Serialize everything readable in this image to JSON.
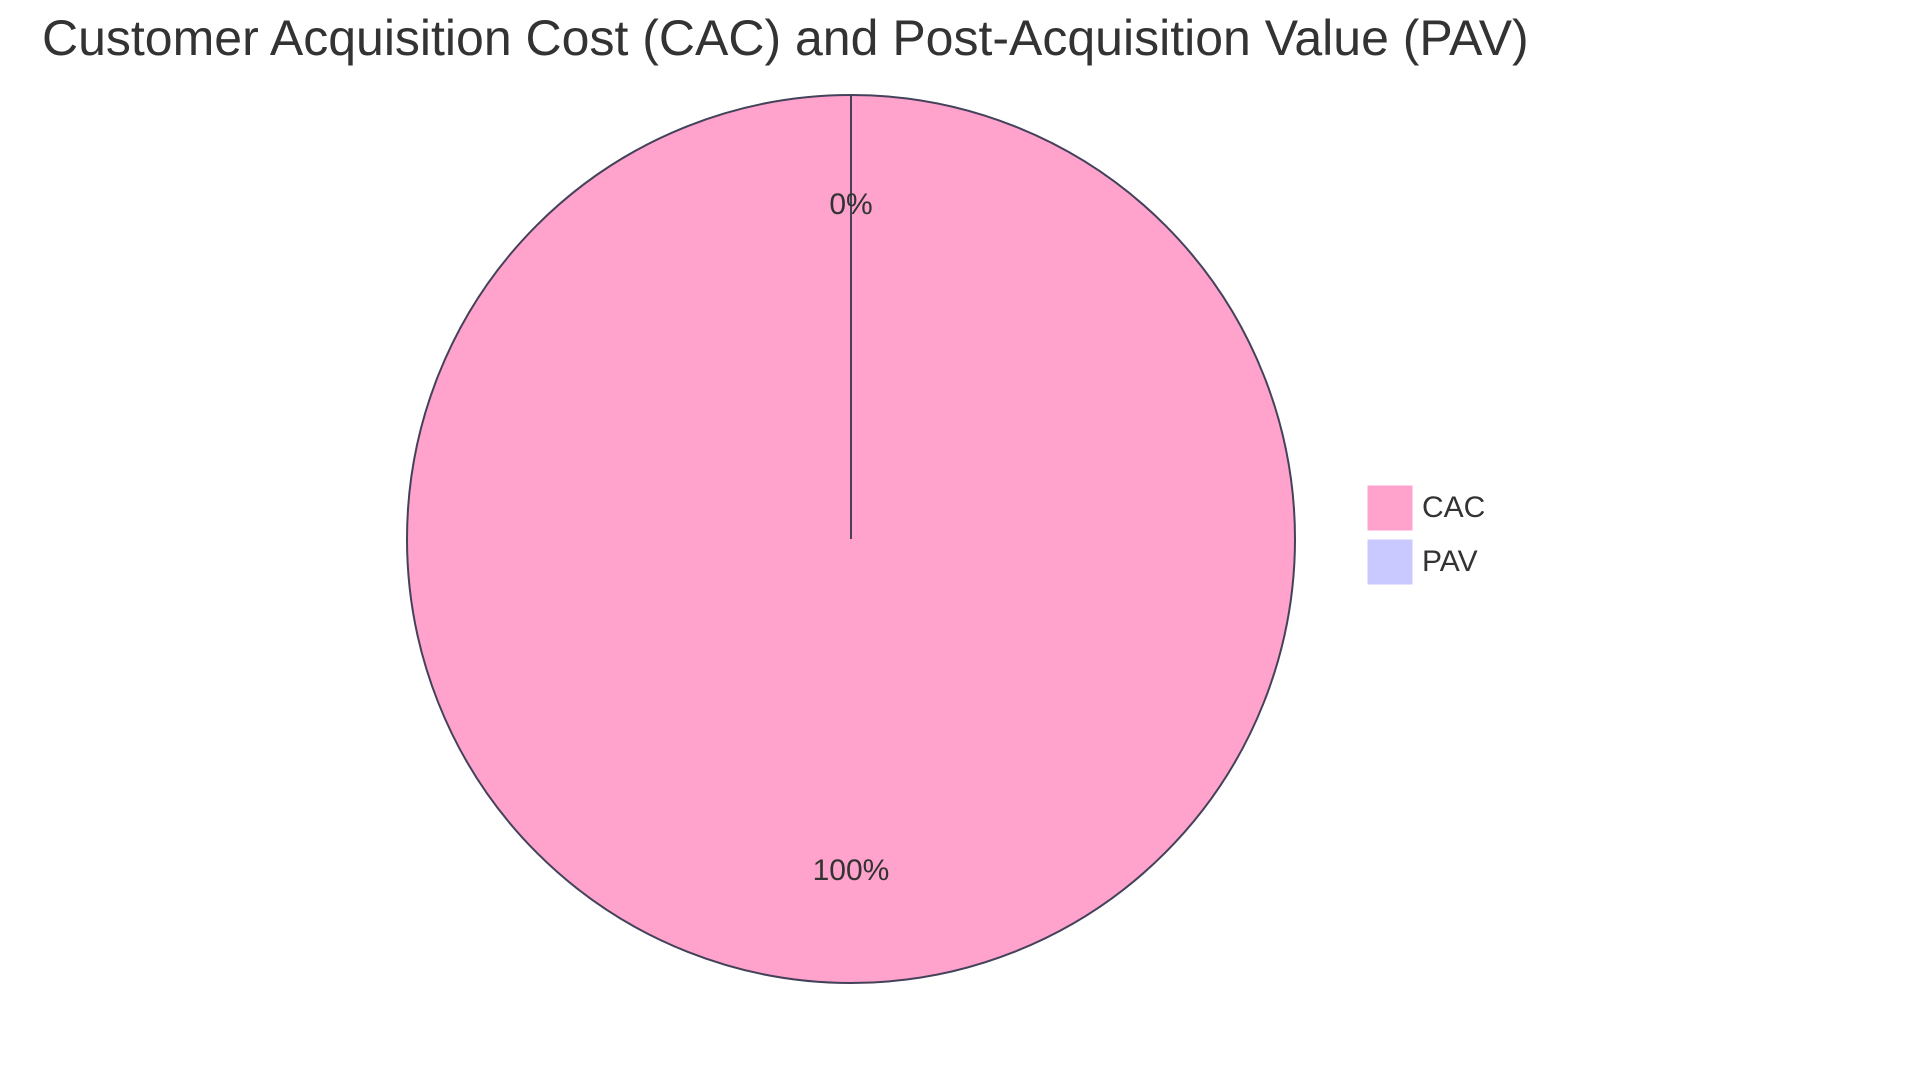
{
  "chart_data": {
    "type": "pie",
    "title": "Customer Acquisition Cost (CAC) and Post-Acquisition Value (PAV)",
    "categories": [
      "CAC",
      "PAV"
    ],
    "values": [
      100,
      0
    ],
    "value_labels": [
      "100%",
      "0%"
    ],
    "colors": [
      "#ffa2cc",
      "#c9c9ff"
    ],
    "legend": "right"
  }
}
